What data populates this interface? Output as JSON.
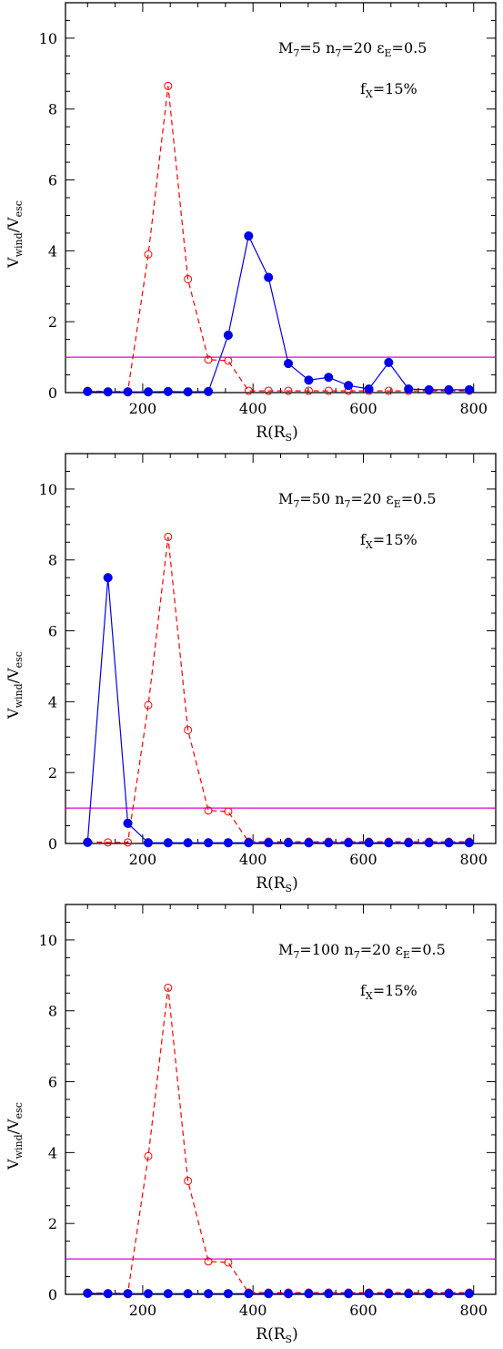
{
  "chart_data": [
    {
      "type": "line",
      "xlabel": "R(R",
      "xlabel_sub": "S",
      "ylabel_main": "V",
      "ylabel_sub1": "wind",
      "ylabel_mid": "/V",
      "ylabel_sub2": "esc",
      "annotation_line1": [
        "M",
        "7",
        "=5  n",
        "7",
        "=20  ε",
        "E",
        "=0.5"
      ],
      "annotation_line2": [
        "f",
        "X",
        "=15%"
      ],
      "xlim": [
        60,
        840
      ],
      "ylim": [
        0,
        11
      ],
      "xticks": [
        200,
        400,
        600,
        800
      ],
      "yticks": [
        0,
        2,
        4,
        6,
        8,
        10
      ],
      "hline": {
        "y": 1,
        "color": "#e000e0"
      },
      "x": [
        100,
        137,
        173,
        210,
        246,
        282,
        319,
        355,
        392,
        428,
        464,
        501,
        537,
        573,
        610,
        646,
        682,
        719,
        755,
        792
      ],
      "series": [
        {
          "style": "dashed-open",
          "color": "#ff0000",
          "values": [
            0.05,
            0.03,
            0.03,
            3.9,
            8.65,
            3.2,
            0.93,
            0.9,
            0.05,
            0.05,
            0.05,
            0.05,
            0.05,
            0.05,
            0.05,
            0.05,
            0.05,
            0.05,
            0.05,
            0.05
          ]
        },
        {
          "style": "solid-filled",
          "color": "#0000ee",
          "values": [
            0.03,
            0.02,
            0.02,
            0.02,
            0.03,
            0.02,
            0.03,
            1.62,
            4.42,
            3.25,
            0.82,
            0.35,
            0.43,
            0.2,
            0.1,
            0.85,
            0.1,
            0.08,
            0.08,
            0.08
          ]
        }
      ]
    },
    {
      "type": "line",
      "xlabel": "R(R",
      "xlabel_sub": "S",
      "ylabel_main": "V",
      "ylabel_sub1": "wind",
      "ylabel_mid": "/V",
      "ylabel_sub2": "esc",
      "annotation_line1": [
        "M",
        "7",
        "=50  n",
        "7",
        "=20  ε",
        "E",
        "=0.5"
      ],
      "annotation_line2": [
        "f",
        "X",
        "=15%"
      ],
      "xlim": [
        60,
        840
      ],
      "ylim": [
        0,
        11
      ],
      "xticks": [
        200,
        400,
        600,
        800
      ],
      "yticks": [
        0,
        2,
        4,
        6,
        8,
        10
      ],
      "hline": {
        "y": 1,
        "color": "#e000e0"
      },
      "x": [
        100,
        137,
        173,
        210,
        246,
        282,
        319,
        355,
        392,
        428,
        464,
        501,
        537,
        573,
        610,
        646,
        682,
        719,
        755,
        792
      ],
      "series": [
        {
          "style": "dashed-open",
          "color": "#ff0000",
          "values": [
            0.05,
            0.03,
            0.03,
            3.9,
            8.65,
            3.2,
            0.93,
            0.9,
            0.05,
            0.05,
            0.05,
            0.05,
            0.05,
            0.05,
            0.05,
            0.05,
            0.05,
            0.05,
            0.05,
            0.05
          ]
        },
        {
          "style": "solid-filled",
          "color": "#0000ee",
          "values": [
            0.03,
            7.5,
            0.57,
            0.02,
            0.02,
            0.02,
            0.02,
            0.02,
            0.02,
            0.02,
            0.02,
            0.02,
            0.02,
            0.02,
            0.02,
            0.02,
            0.02,
            0.02,
            0.02,
            0.02
          ]
        }
      ]
    },
    {
      "type": "line",
      "xlabel": "R(R",
      "xlabel_sub": "S",
      "ylabel_main": "V",
      "ylabel_sub1": "wind",
      "ylabel_mid": "/V",
      "ylabel_sub2": "esc",
      "annotation_line1": [
        "M",
        "7",
        "=100  n",
        "7",
        "=20  ε",
        "E",
        "=0.5"
      ],
      "annotation_line2": [
        "f",
        "X",
        "=15%"
      ],
      "xlim": [
        60,
        840
      ],
      "ylim": [
        0,
        11
      ],
      "xticks": [
        200,
        400,
        600,
        800
      ],
      "yticks": [
        0,
        2,
        4,
        6,
        8,
        10
      ],
      "hline": {
        "y": 1,
        "color": "#e000e0"
      },
      "x": [
        100,
        137,
        173,
        210,
        246,
        282,
        319,
        355,
        392,
        428,
        464,
        501,
        537,
        573,
        610,
        646,
        682,
        719,
        755,
        792
      ],
      "series": [
        {
          "style": "dashed-open",
          "color": "#ff0000",
          "values": [
            0.05,
            0.03,
            0.03,
            3.9,
            8.65,
            3.2,
            0.93,
            0.9,
            0.05,
            0.05,
            0.05,
            0.05,
            0.05,
            0.05,
            0.05,
            0.05,
            0.05,
            0.05,
            0.05,
            0.05
          ]
        },
        {
          "style": "solid-filled",
          "color": "#0000ee",
          "values": [
            0.03,
            0.02,
            0.02,
            0.02,
            0.02,
            0.02,
            0.02,
            0.02,
            0.02,
            0.02,
            0.02,
            0.02,
            0.02,
            0.02,
            0.02,
            0.02,
            0.02,
            0.02,
            0.02,
            0.02
          ]
        }
      ]
    }
  ]
}
